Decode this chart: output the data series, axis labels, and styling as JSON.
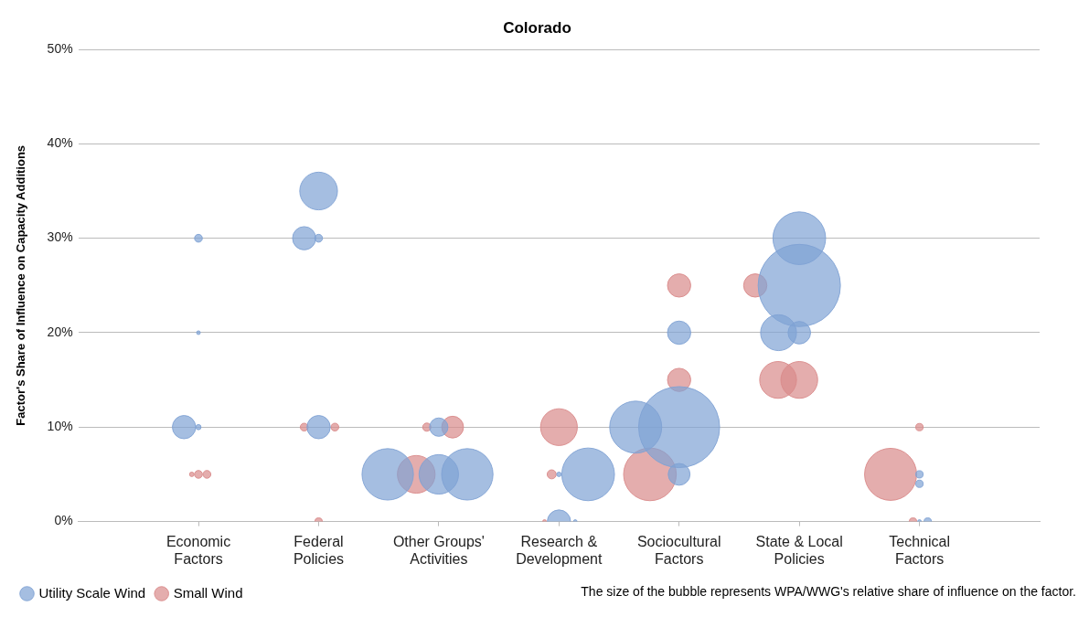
{
  "chart_data": {
    "type": "bubble",
    "title": "Colorado",
    "ylabel": "Factor's Share of Influence on Capacity Additions",
    "categories": [
      "Economic Factors",
      "Federal Policies",
      "Other Groups' Activities",
      "Research & Development",
      "Sociocultural Factors",
      "State & Local Policies",
      "Technical Factors"
    ],
    "ylim": [
      0,
      50
    ],
    "yticks": [
      {
        "value": 0,
        "label": "0%"
      },
      {
        "value": 10,
        "label": "10%"
      },
      {
        "value": 20,
        "label": "20%"
      },
      {
        "value": 30,
        "label": "30%"
      },
      {
        "value": 40,
        "label": "40%"
      },
      {
        "value": 50,
        "label": "50%"
      }
    ],
    "grid": "y",
    "legend": "bottom left",
    "series": [
      {
        "name": "Utility Scale Wind",
        "color": "#7fa2d4",
        "x": [
          "Economic Factors",
          "Economic Factors",
          "Economic Factors",
          "Economic Factors",
          "Federal Policies",
          "Federal Policies",
          "Federal Policies",
          "Federal Policies",
          "Other Groups' Activities",
          "Other Groups' Activities",
          "Other Groups' Activities",
          "Other Groups' Activities",
          "Research & Development",
          "Research & Development",
          "Research & Development",
          "Research & Development",
          "Sociocultural Factors",
          "Sociocultural Factors",
          "Sociocultural Factors",
          "Sociocultural Factors",
          "State & Local Policies",
          "State & Local Policies",
          "State & Local Policies",
          "State & Local Policies",
          "Technical Factors",
          "Technical Factors",
          "Technical Factors",
          "Technical Factors"
        ],
        "values": [
          30,
          20,
          10,
          10,
          35,
          30,
          30,
          10,
          10,
          5,
          5,
          5,
          0,
          5,
          5,
          0,
          20,
          10,
          10,
          5,
          30,
          25,
          20,
          20,
          5,
          4,
          0,
          0
        ],
        "sizes": [
          0.009,
          0.002,
          0.004,
          0.08,
          0.21,
          0.009,
          0.08,
          0.08,
          0.05,
          0.23,
          0.39,
          0.39,
          0.08,
          0.003,
          0.41,
          0.002,
          0.08,
          0.97,
          0.4,
          0.07,
          0.41,
          1,
          0.075,
          0.19,
          0.008,
          0.008,
          0.002,
          0.008
        ]
      },
      {
        "name": "Small Wind",
        "color": "#d98a8a",
        "x": [
          "Economic Factors",
          "Economic Factors",
          "Economic Factors",
          "Federal Policies",
          "Federal Policies",
          "Federal Policies",
          "Other Groups' Activities",
          "Other Groups' Activities",
          "Other Groups' Activities",
          "Research & Development",
          "Research & Development",
          "Research & Development",
          "Sociocultural Factors",
          "Sociocultural Factors",
          "Sociocultural Factors",
          "State & Local Policies",
          "State & Local Policies",
          "State & Local Policies",
          "Technical Factors",
          "Technical Factors",
          "Technical Factors"
        ],
        "values": [
          5,
          5,
          5,
          10,
          10,
          0,
          10,
          10,
          5,
          5,
          10,
          0,
          25,
          15,
          5,
          25,
          15,
          15,
          10,
          5,
          0
        ],
        "sizes": [
          0.009,
          0.003,
          0.009,
          0.009,
          0.009,
          0.008,
          0.01,
          0.07,
          0.21,
          0.012,
          0.2,
          0.002,
          0.08,
          0.08,
          0.41,
          0.08,
          0.2,
          0.2,
          0.008,
          0.4,
          0.008
        ]
      }
    ],
    "annotations": [
      "The size of the bubble represents WPA/WWG's relative share of influence on the factor."
    ]
  }
}
